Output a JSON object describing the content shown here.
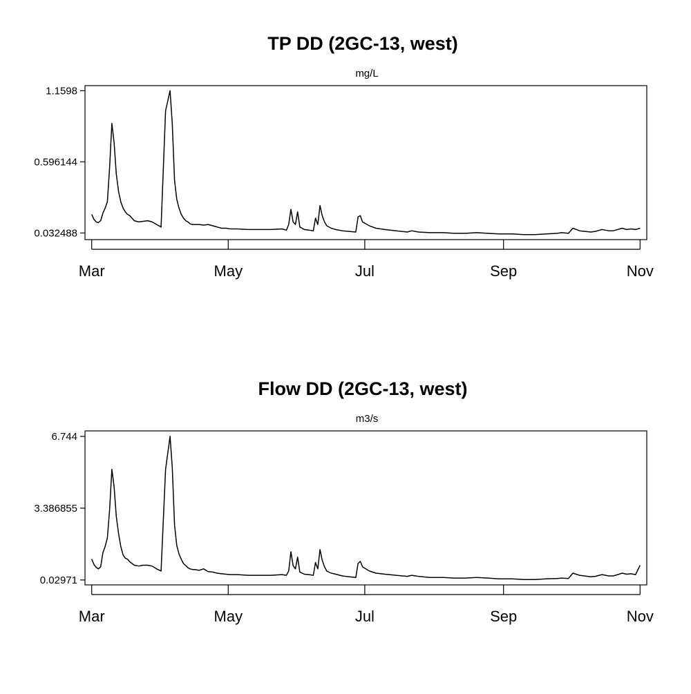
{
  "chart_data": [
    {
      "type": "line",
      "title": "TP DD (2GC-13, west)",
      "subtitle": "mg/L",
      "xlabel": "",
      "ylabel": "",
      "x_tick_labels": [
        "Mar",
        "May",
        "Jul",
        "Sep",
        "Nov"
      ],
      "x_tick_dates": [
        "2019-03-01",
        "2019-05-01",
        "2019-07-01",
        "2019-09-01",
        "2019-11-01"
      ],
      "y_tick_labels": [
        "1.1598",
        "0.596144",
        "0.032488"
      ],
      "y_ticks": [
        1.1598,
        0.596144,
        0.032488
      ],
      "ylim": [
        -0.02,
        1.2
      ],
      "xlim": [
        "2019-02-26",
        "2019-11-04"
      ],
      "grid": false,
      "legend": "none",
      "series": [
        {
          "x": [
            "2019-03-01",
            "2019-03-02",
            "2019-03-03",
            "2019-03-04",
            "2019-03-05",
            "2019-03-06",
            "2019-03-07",
            "2019-03-08",
            "2019-03-09",
            "2019-03-10",
            "2019-03-11",
            "2019-03-12",
            "2019-03-13",
            "2019-03-14",
            "2019-03-15",
            "2019-03-16",
            "2019-03-17",
            "2019-03-18",
            "2019-03-20",
            "2019-03-22",
            "2019-03-24",
            "2019-03-26",
            "2019-03-28",
            "2019-03-30",
            "2019-04-01",
            "2019-04-03",
            "2019-04-05",
            "2019-04-06",
            "2019-04-07",
            "2019-04-08",
            "2019-04-09",
            "2019-04-10",
            "2019-04-11",
            "2019-04-12",
            "2019-04-13",
            "2019-04-14",
            "2019-04-15",
            "2019-04-16",
            "2019-04-18",
            "2019-04-20",
            "2019-04-22",
            "2019-04-24",
            "2019-04-26",
            "2019-04-28",
            "2019-04-30",
            "2019-05-02",
            "2019-05-05",
            "2019-05-10",
            "2019-05-15",
            "2019-05-20",
            "2019-05-25",
            "2019-05-27",
            "2019-05-28",
            "2019-05-29",
            "2019-05-30",
            "2019-05-31",
            "2019-06-01",
            "2019-06-02",
            "2019-06-04",
            "2019-06-06",
            "2019-06-08",
            "2019-06-09",
            "2019-06-10",
            "2019-06-11",
            "2019-06-12",
            "2019-06-13",
            "2019-06-14",
            "2019-06-16",
            "2019-06-18",
            "2019-06-21",
            "2019-06-24",
            "2019-06-27",
            "2019-06-28",
            "2019-06-29",
            "2019-06-30",
            "2019-07-03",
            "2019-07-06",
            "2019-07-10",
            "2019-07-15",
            "2019-07-20",
            "2019-07-22",
            "2019-07-25",
            "2019-07-30",
            "2019-08-05",
            "2019-08-10",
            "2019-08-15",
            "2019-08-20",
            "2019-08-25",
            "2019-08-30",
            "2019-09-05",
            "2019-09-10",
            "2019-09-15",
            "2019-09-20",
            "2019-09-25",
            "2019-09-27",
            "2019-09-30",
            "2019-10-02",
            "2019-10-05",
            "2019-10-10",
            "2019-10-12",
            "2019-10-15",
            "2019-10-18",
            "2019-10-20",
            "2019-10-22",
            "2019-10-24",
            "2019-10-26",
            "2019-10-28",
            "2019-10-30",
            "2019-11-01"
          ],
          "y": [
            0.18,
            0.14,
            0.12,
            0.115,
            0.13,
            0.19,
            0.23,
            0.28,
            0.55,
            0.9,
            0.75,
            0.5,
            0.36,
            0.28,
            0.23,
            0.2,
            0.18,
            0.17,
            0.13,
            0.12,
            0.125,
            0.13,
            0.12,
            0.1,
            0.08,
            1.0,
            1.16,
            0.9,
            0.45,
            0.3,
            0.23,
            0.18,
            0.15,
            0.13,
            0.12,
            0.105,
            0.1,
            0.1,
            0.1,
            0.095,
            0.1,
            0.09,
            0.08,
            0.07,
            0.07,
            0.065,
            0.065,
            0.06,
            0.06,
            0.06,
            0.065,
            0.055,
            0.1,
            0.22,
            0.12,
            0.1,
            0.2,
            0.08,
            0.06,
            0.055,
            0.05,
            0.15,
            0.1,
            0.25,
            0.17,
            0.12,
            0.09,
            0.07,
            0.06,
            0.05,
            0.045,
            0.04,
            0.16,
            0.17,
            0.12,
            0.09,
            0.07,
            0.06,
            0.05,
            0.04,
            0.05,
            0.04,
            0.035,
            0.035,
            0.03,
            0.03,
            0.035,
            0.03,
            0.025,
            0.025,
            0.02,
            0.02,
            0.025,
            0.03,
            0.035,
            0.03,
            0.07,
            0.05,
            0.04,
            0.045,
            0.06,
            0.05,
            0.05,
            0.06,
            0.07,
            0.06,
            0.065,
            0.06,
            0.07
          ]
        }
      ]
    },
    {
      "type": "line",
      "title": "Flow DD (2GC-13, west)",
      "subtitle": "m3/s",
      "xlabel": "",
      "ylabel": "",
      "x_tick_labels": [
        "Mar",
        "May",
        "Jul",
        "Sep",
        "Nov"
      ],
      "x_tick_dates": [
        "2019-03-01",
        "2019-05-01",
        "2019-07-01",
        "2019-09-01",
        "2019-11-01"
      ],
      "y_tick_labels": [
        "6.744",
        "3.386855",
        "0.02971"
      ],
      "y_ticks": [
        6.744,
        3.386855,
        0.02971
      ],
      "ylim": [
        -0.2,
        7.0
      ],
      "xlim": [
        "2019-02-26",
        "2019-11-04"
      ],
      "grid": false,
      "legend": "none",
      "series": [
        {
          "x": [
            "2019-03-01",
            "2019-03-02",
            "2019-03-03",
            "2019-03-04",
            "2019-03-05",
            "2019-03-06",
            "2019-03-07",
            "2019-03-08",
            "2019-03-09",
            "2019-03-10",
            "2019-03-11",
            "2019-03-12",
            "2019-03-13",
            "2019-03-14",
            "2019-03-15",
            "2019-03-16",
            "2019-03-17",
            "2019-03-18",
            "2019-03-20",
            "2019-03-22",
            "2019-03-24",
            "2019-03-26",
            "2019-03-28",
            "2019-03-30",
            "2019-04-01",
            "2019-04-03",
            "2019-04-05",
            "2019-04-06",
            "2019-04-07",
            "2019-04-08",
            "2019-04-09",
            "2019-04-10",
            "2019-04-11",
            "2019-04-12",
            "2019-04-13",
            "2019-04-14",
            "2019-04-15",
            "2019-04-16",
            "2019-04-18",
            "2019-04-20",
            "2019-04-22",
            "2019-04-24",
            "2019-04-26",
            "2019-04-28",
            "2019-04-30",
            "2019-05-02",
            "2019-05-05",
            "2019-05-10",
            "2019-05-15",
            "2019-05-20",
            "2019-05-25",
            "2019-05-27",
            "2019-05-28",
            "2019-05-29",
            "2019-05-30",
            "2019-05-31",
            "2019-06-01",
            "2019-06-02",
            "2019-06-04",
            "2019-06-06",
            "2019-06-08",
            "2019-06-09",
            "2019-06-10",
            "2019-06-11",
            "2019-06-12",
            "2019-06-13",
            "2019-06-14",
            "2019-06-16",
            "2019-06-18",
            "2019-06-21",
            "2019-06-24",
            "2019-06-27",
            "2019-06-28",
            "2019-06-29",
            "2019-06-30",
            "2019-07-03",
            "2019-07-06",
            "2019-07-10",
            "2019-07-15",
            "2019-07-20",
            "2019-07-22",
            "2019-07-25",
            "2019-07-30",
            "2019-08-05",
            "2019-08-10",
            "2019-08-15",
            "2019-08-20",
            "2019-08-25",
            "2019-08-30",
            "2019-09-05",
            "2019-09-10",
            "2019-09-15",
            "2019-09-20",
            "2019-09-25",
            "2019-09-27",
            "2019-09-30",
            "2019-10-02",
            "2019-10-05",
            "2019-10-10",
            "2019-10-12",
            "2019-10-15",
            "2019-10-18",
            "2019-10-20",
            "2019-10-22",
            "2019-10-24",
            "2019-10-26",
            "2019-10-28",
            "2019-10-30",
            "2019-11-01"
          ],
          "y": [
            1.0,
            0.75,
            0.62,
            0.55,
            0.65,
            1.3,
            1.6,
            2.0,
            3.3,
            5.2,
            4.4,
            3.0,
            2.2,
            1.6,
            1.2,
            1.05,
            1.0,
            0.88,
            0.72,
            0.68,
            0.72,
            0.72,
            0.68,
            0.55,
            0.45,
            5.2,
            6.744,
            5.3,
            2.6,
            1.65,
            1.25,
            1.0,
            0.8,
            0.7,
            0.6,
            0.55,
            0.52,
            0.52,
            0.48,
            0.55,
            0.42,
            0.4,
            0.35,
            0.32,
            0.3,
            0.28,
            0.28,
            0.25,
            0.25,
            0.25,
            0.28,
            0.25,
            0.45,
            1.35,
            0.7,
            0.55,
            1.1,
            0.4,
            0.3,
            0.28,
            0.25,
            0.85,
            0.55,
            1.45,
            0.95,
            0.65,
            0.45,
            0.35,
            0.3,
            0.22,
            0.18,
            0.15,
            0.8,
            0.9,
            0.65,
            0.45,
            0.35,
            0.3,
            0.25,
            0.2,
            0.25,
            0.2,
            0.15,
            0.15,
            0.12,
            0.12,
            0.15,
            0.12,
            0.08,
            0.08,
            0.05,
            0.05,
            0.08,
            0.1,
            0.12,
            0.1,
            0.35,
            0.25,
            0.18,
            0.2,
            0.28,
            0.22,
            0.22,
            0.28,
            0.35,
            0.3,
            0.32,
            0.28,
            0.72
          ]
        }
      ]
    }
  ]
}
